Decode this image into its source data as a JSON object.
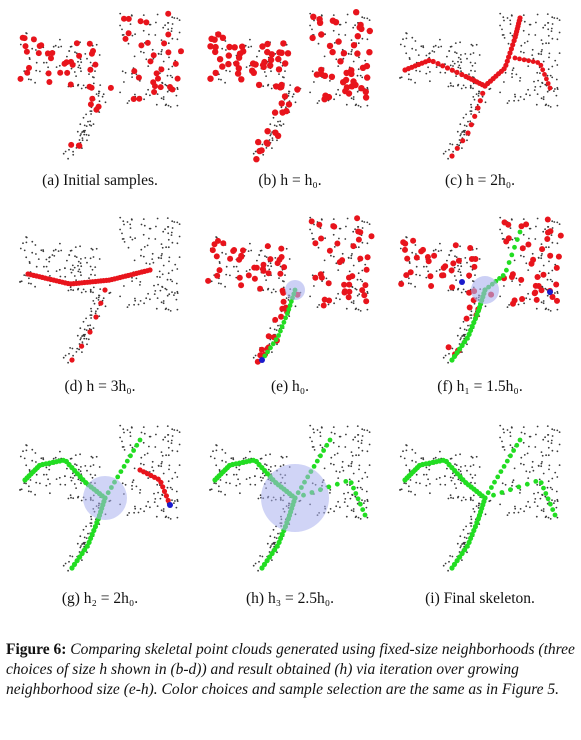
{
  "panels": [
    {
      "id": "a",
      "caption": "(a)  Initial samples."
    },
    {
      "id": "b",
      "caption": "(b)  h = h₀."
    },
    {
      "id": "c",
      "caption": "(c)  h = 2h₀."
    },
    {
      "id": "d",
      "caption": "(d)  h = 3h₀."
    },
    {
      "id": "e",
      "caption": "(e)  h₀."
    },
    {
      "id": "f",
      "caption": "(f)  h₁ = 1.5h₀."
    },
    {
      "id": "g",
      "caption": "(g)  h₂ = 2h₀."
    },
    {
      "id": "h",
      "caption": "(h)  h₃ = 2.5h₀."
    },
    {
      "id": "i",
      "caption": "(i)  Final skeleton."
    }
  ],
  "figure": {
    "label": "Figure 6:",
    "text": "Comparing skeletal point clouds generated using fixed-size neighborhoods (three choices of size h shown in (b-d)) and result obtained (h) via iteration over growing neighborhood size (e-h). Color choices and sample selection are the same as in Figure 5."
  },
  "colors": {
    "sample": "#e8141c",
    "cloud": "#3a3a3a",
    "branch": "#22dd22",
    "node": "#1a1acc",
    "neighborhood": "#aab0ee"
  }
}
